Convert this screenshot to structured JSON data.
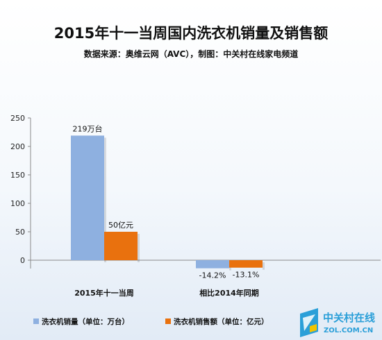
{
  "chart_data": {
    "type": "bar",
    "title": "2015年十一当周国内洗衣机销量及销售额",
    "subtitle": "数据来源：奥维云网（AVC），制图：中关村在线家电频道",
    "categories": [
      "2015年十一当周",
      "相比2014年同期"
    ],
    "series": [
      {
        "name": "洗衣机销量（单位：万台）",
        "values": [
          219,
          -14.2
        ],
        "labels": [
          "219万台",
          "-14.2%"
        ],
        "color": "#8EB0E0"
      },
      {
        "name": "洗衣机销售额（单位：亿元）",
        "values": [
          50,
          -13.1
        ],
        "labels": [
          "50亿元",
          "-13.1%"
        ],
        "color": "#E9710E"
      }
    ],
    "ylim": [
      -20,
      250
    ],
    "yticks": [
      0,
      50,
      100,
      150,
      200,
      250
    ],
    "grid": false,
    "legend_position": "bottom-left"
  },
  "watermark": {
    "text": "中关村在线",
    "url_text": "ZOL.COM.CN",
    "color": "#2a9fd8"
  }
}
